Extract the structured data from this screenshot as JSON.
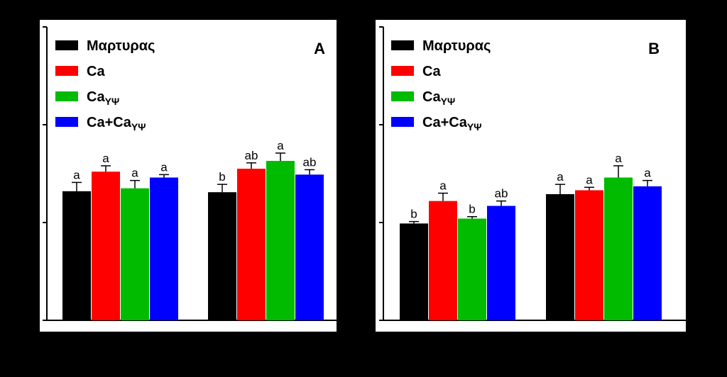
{
  "chart_data": [
    {
      "type": "bar",
      "panel_label": "A",
      "title": "",
      "xlabel": "",
      "ylabel": "",
      "categories": [
        "",
        ""
      ],
      "ylim": [
        0,
        3
      ],
      "grid": false,
      "legend_placement": "top-left",
      "series": [
        {
          "name": "Μαρτυρας",
          "legend_main": "Μαρτυρας",
          "legend_sub": "",
          "color": "#000000",
          "values": [
            1.32,
            1.31
          ],
          "errors": [
            0.09,
            0.08
          ],
          "labels": [
            "a",
            "b"
          ]
        },
        {
          "name": "Ca",
          "legend_main": "Ca",
          "legend_sub": "",
          "color": "#ff0000",
          "values": [
            1.52,
            1.55
          ],
          "errors": [
            0.06,
            0.06
          ],
          "labels": [
            "a",
            "ab"
          ]
        },
        {
          "name": "CaΥΨ",
          "legend_main": "Ca",
          "legend_sub": "ΥΨ",
          "color": "#00bb00",
          "values": [
            1.35,
            1.63
          ],
          "errors": [
            0.08,
            0.08
          ],
          "labels": [
            "a",
            "a"
          ]
        },
        {
          "name": "Ca+CaΥΨ",
          "legend_main": "Ca+Ca",
          "legend_sub": "ΥΨ",
          "color": "#0000ff",
          "values": [
            1.46,
            1.49
          ],
          "errors": [
            0.03,
            0.05
          ],
          "labels": [
            "a",
            "ab"
          ]
        }
      ]
    },
    {
      "type": "bar",
      "panel_label": "B",
      "title": "",
      "xlabel": "",
      "ylabel": "",
      "categories": [
        "",
        ""
      ],
      "ylim": [
        0,
        3
      ],
      "grid": false,
      "legend_placement": "top-left",
      "series": [
        {
          "name": "Μαρτυρας",
          "legend_main": "Μαρτυρας",
          "legend_sub": "",
          "color": "#000000",
          "values": [
            0.99,
            1.29
          ],
          "errors": [
            0.02,
            0.1
          ],
          "labels": [
            "b",
            "a"
          ]
        },
        {
          "name": "Ca",
          "legend_main": "Ca",
          "legend_sub": "",
          "color": "#ff0000",
          "values": [
            1.22,
            1.33
          ],
          "errors": [
            0.08,
            0.03
          ],
          "labels": [
            "a",
            "a"
          ]
        },
        {
          "name": "CaΥΨ",
          "legend_main": "Ca",
          "legend_sub": "ΥΨ",
          "color": "#00bb00",
          "values": [
            1.04,
            1.46
          ],
          "errors": [
            0.02,
            0.12
          ],
          "labels": [
            "b",
            "a"
          ]
        },
        {
          "name": "Ca+CaΥΨ",
          "legend_main": "Ca+Ca",
          "legend_sub": "ΥΨ",
          "color": "#0000ff",
          "values": [
            1.17,
            1.37
          ],
          "errors": [
            0.05,
            0.06
          ],
          "labels": [
            "ab",
            "a"
          ]
        }
      ]
    }
  ]
}
